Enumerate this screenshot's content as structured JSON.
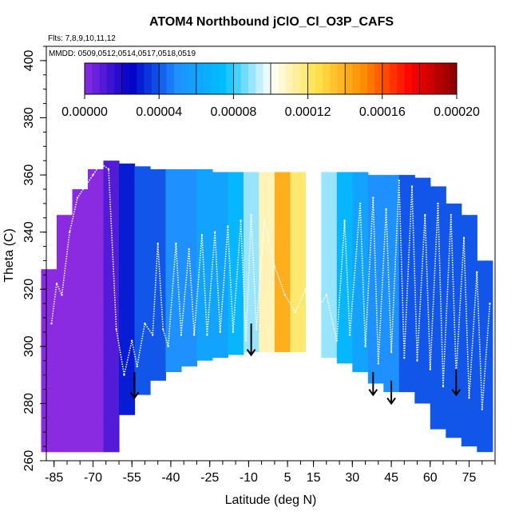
{
  "chart_data": {
    "type": "heatmap",
    "title": "ATOM4 Northbound jClO_Cl_O3P_CAFS",
    "flights_label": "Flts: 7,8,9,10,11,12",
    "dates_label": "MMDD: 0509,0512,0514,0517,0518,0519",
    "xlabel": "Latitude (deg N)",
    "ylabel": "Theta (C)",
    "xlim": [
      -88,
      85
    ],
    "ylim": [
      260,
      405
    ],
    "x_ticks": [
      -85,
      -70,
      -55,
      -40,
      -25,
      -10,
      5,
      15,
      30,
      45,
      60,
      75
    ],
    "x_tick_labels": [
      "-85",
      "-70",
      "-55",
      "-40",
      "-25",
      "-10",
      "5",
      "15",
      "30",
      "45",
      "60",
      "75"
    ],
    "y_ticks": [
      260,
      280,
      300,
      320,
      340,
      360,
      380,
      400
    ],
    "y_tick_labels": [
      "260",
      "280",
      "300",
      "320",
      "340",
      "360",
      "380",
      "400"
    ],
    "colorbar": {
      "range": [
        0,
        0.0002
      ],
      "ticks": [
        0,
        4e-05,
        8e-05,
        0.00012,
        0.00016,
        0.0002
      ],
      "tick_labels": [
        "0.00000",
        "0.00004",
        "0.00008",
        "0.00012",
        "0.00016",
        "0.00020"
      ],
      "colors": [
        "#8a2be2",
        "#0000c8",
        "#1e90ff",
        "#00bfff",
        "#ffffff",
        "#ffe24a",
        "#ff8c00",
        "#ff0000",
        "#8b0000"
      ]
    },
    "field_bins": [
      {
        "lat": -87,
        "theta_min": 263,
        "theta_max": 327,
        "value": 0.0
      },
      {
        "lat": -81,
        "theta_min": 263,
        "theta_max": 346,
        "value": 0.0
      },
      {
        "lat": -75,
        "theta_min": 263,
        "theta_max": 355,
        "value": 0.0
      },
      {
        "lat": -69,
        "theta_min": 263,
        "theta_max": 362,
        "value": 0.0
      },
      {
        "lat": -63,
        "theta_min": 263,
        "theta_max": 365,
        "value": 1e-05
      },
      {
        "lat": -57,
        "theta_min": 276,
        "theta_max": 364,
        "value": 3e-05
      },
      {
        "lat": -51,
        "theta_min": 283,
        "theta_max": 363,
        "value": 4e-05
      },
      {
        "lat": -45,
        "theta_min": 288,
        "theta_max": 362,
        "value": 4e-05
      },
      {
        "lat": -39,
        "theta_min": 291,
        "theta_max": 362,
        "value": 5e-05
      },
      {
        "lat": -33,
        "theta_min": 293,
        "theta_max": 362,
        "value": 5e-05
      },
      {
        "lat": -27,
        "theta_min": 295,
        "theta_max": 362,
        "value": 6e-05
      },
      {
        "lat": -21,
        "theta_min": 296,
        "theta_max": 361,
        "value": 6e-05
      },
      {
        "lat": -15,
        "theta_min": 297,
        "theta_max": 361,
        "value": 7e-05
      },
      {
        "lat": -9,
        "theta_min": 298,
        "theta_max": 361,
        "value": 9e-05
      },
      {
        "lat": -3,
        "theta_min": 298,
        "theta_max": 361,
        "value": 0.00011
      },
      {
        "lat": 3,
        "theta_min": 298,
        "theta_max": 361,
        "value": 0.00014
      },
      {
        "lat": 9,
        "theta_min": 298,
        "theta_max": 361,
        "value": 0.00012
      },
      {
        "lat": 15,
        "theta_min": 297,
        "theta_max": 361,
        "value": 0.0001
      },
      {
        "lat": 21,
        "theta_min": 296,
        "theta_max": 361,
        "value": 9e-05
      },
      {
        "lat": 27,
        "theta_min": 294,
        "theta_max": 361,
        "value": 7e-05
      },
      {
        "lat": 33,
        "theta_min": 291,
        "theta_max": 361,
        "value": 6e-05
      },
      {
        "lat": 39,
        "theta_min": 287,
        "theta_max": 360,
        "value": 5e-05
      },
      {
        "lat": 45,
        "theta_min": 284,
        "theta_max": 360,
        "value": 5e-05
      },
      {
        "lat": 51,
        "theta_min": 284,
        "theta_max": 360,
        "value": 4e-05
      },
      {
        "lat": 57,
        "theta_min": 280,
        "theta_max": 359,
        "value": 4e-05
      },
      {
        "lat": 63,
        "theta_min": 271,
        "theta_max": 356,
        "value": 4e-05
      },
      {
        "lat": 69,
        "theta_min": 268,
        "theta_max": 350,
        "value": 4e-05
      },
      {
        "lat": 75,
        "theta_min": 265,
        "theta_max": 346,
        "value": 4e-05
      },
      {
        "lat": 81,
        "theta_min": 263,
        "theta_max": 330,
        "value": 4e-05
      }
    ],
    "flight_track": [
      [
        -86,
        308
      ],
      [
        -84,
        322
      ],
      [
        -82,
        318
      ],
      [
        -79,
        340
      ],
      [
        -76,
        352
      ],
      [
        -73,
        356
      ],
      [
        -70,
        360
      ],
      [
        -67,
        364
      ],
      [
        -64,
        362
      ],
      [
        -61,
        306
      ],
      [
        -58,
        290
      ],
      [
        -55,
        302
      ],
      [
        -53,
        293
      ],
      [
        -50,
        308
      ],
      [
        -47,
        304
      ],
      [
        -45,
        336
      ],
      [
        -43,
        306
      ],
      [
        -41,
        300
      ],
      [
        -38,
        336
      ],
      [
        -36,
        304
      ],
      [
        -33,
        334
      ],
      [
        -31,
        304
      ],
      [
        -28,
        339
      ],
      [
        -26,
        304
      ],
      [
        -23,
        340
      ],
      [
        -21,
        305
      ],
      [
        -18,
        342
      ],
      [
        -16,
        305
      ],
      [
        -13,
        344
      ],
      [
        -11,
        302
      ],
      [
        -9,
        346
      ],
      [
        -7,
        306
      ],
      [
        -4,
        344
      ],
      [
        0,
        328
      ],
      [
        4,
        318
      ],
      [
        8,
        312
      ],
      [
        12,
        320
      ],
      [
        16,
        312
      ],
      [
        20,
        318
      ],
      [
        24,
        302
      ],
      [
        27,
        344
      ],
      [
        29,
        304
      ],
      [
        33,
        350
      ],
      [
        35,
        300
      ],
      [
        38,
        352
      ],
      [
        40,
        294
      ],
      [
        43,
        348
      ],
      [
        45,
        298
      ],
      [
        48,
        358
      ],
      [
        50,
        296
      ],
      [
        53,
        356
      ],
      [
        55,
        295
      ],
      [
        58,
        346
      ],
      [
        60,
        292
      ],
      [
        63,
        350
      ],
      [
        65,
        286
      ],
      [
        68,
        346
      ],
      [
        70,
        290
      ],
      [
        73,
        338
      ],
      [
        75,
        282
      ],
      [
        78,
        326
      ],
      [
        80,
        278
      ],
      [
        83,
        315
      ]
    ],
    "arrows": [
      {
        "lat": -54,
        "theta_top": 291,
        "theta_tip": 282
      },
      {
        "lat": -9,
        "theta_top": 308,
        "theta_tip": 297
      },
      {
        "lat": 38,
        "theta_top": 291,
        "theta_tip": 283
      },
      {
        "lat": 45,
        "theta_top": 288,
        "theta_tip": 280
      },
      {
        "lat": 70,
        "theta_top": 292,
        "theta_tip": 283
      }
    ]
  }
}
